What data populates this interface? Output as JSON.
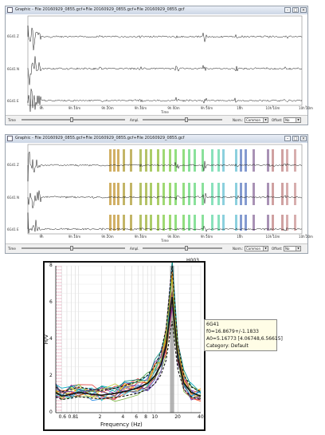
{
  "window1": {
    "title": "Graphic - File 20160929_0855.gcf+File 20160929_0855.gcf+File 20160929_0855.gcf",
    "channels": [
      "6G41 Z",
      "6G41 N",
      "6G41 E"
    ],
    "time_ticks": [
      "9h",
      "9h 10m",
      "9h 20m",
      "9h 30m",
      "9h 40m",
      "9h 50m",
      "10h",
      "10h 10m",
      "10h 20m"
    ],
    "axis_title": "Time",
    "toolbar": {
      "time_label": "Time",
      "ampl_label": "Ampl.",
      "norm_label": "Norm.:",
      "norm_value": "Common",
      "offset_label": "Offset:",
      "offset_value": "No"
    }
  },
  "window2": {
    "title": "Graphic - File 20160929_0855.gcf+File 20160929_0855.gcf+File 20160929_0855.gcf",
    "channels": [
      "6G41 Z",
      "6G41 N",
      "6G41 E"
    ],
    "time_ticks": [
      "9h",
      "9h 10m",
      "9h 20m",
      "9h 30m",
      "9h 40m",
      "9h 50m",
      "10h",
      "10h 10m",
      "10h 20m"
    ],
    "axis_title": "Time",
    "toolbar": {
      "time_label": "Time",
      "ampl_label": "Ampl.",
      "norm_label": "Norm.:",
      "norm_value": "Common",
      "offset_label": "Offset:",
      "offset_value": "No"
    }
  },
  "chart_data": {
    "type": "line",
    "title": "H003",
    "xlabel": "Frequency (Hz)",
    "ylabel": "H/V",
    "x_scale": "log",
    "xlim": [
      0.5,
      40
    ],
    "ylim": [
      0,
      8
    ],
    "x_ticks": [
      "0.6",
      "0.8",
      "1",
      "2",
      "4",
      "6",
      "8",
      "10",
      "20",
      "40"
    ],
    "y_ticks": [
      "0",
      "2",
      "4",
      "6",
      "8"
    ],
    "peak_frequency": 16.8679,
    "mean_curve": {
      "x": [
        0.5,
        0.6,
        0.8,
        1,
        1.5,
        2,
        3,
        4,
        6,
        8,
        10,
        12,
        14,
        15,
        16,
        16.9,
        18,
        20,
        24,
        30,
        40
      ],
      "y": [
        1.1,
        0.9,
        1.0,
        1.1,
        1.0,
        0.95,
        1.05,
        1.15,
        1.35,
        1.6,
        2.0,
        2.6,
        3.6,
        4.6,
        5.6,
        6.3,
        5.0,
        3.0,
        1.6,
        1.1,
        0.9
      ]
    },
    "tooltip": {
      "station": "6G41",
      "f0": "f0=16.8679+/-1.1833",
      "a0": "A0=5.16773 [4.06748,6.56615]",
      "category": "Category: Default"
    }
  }
}
